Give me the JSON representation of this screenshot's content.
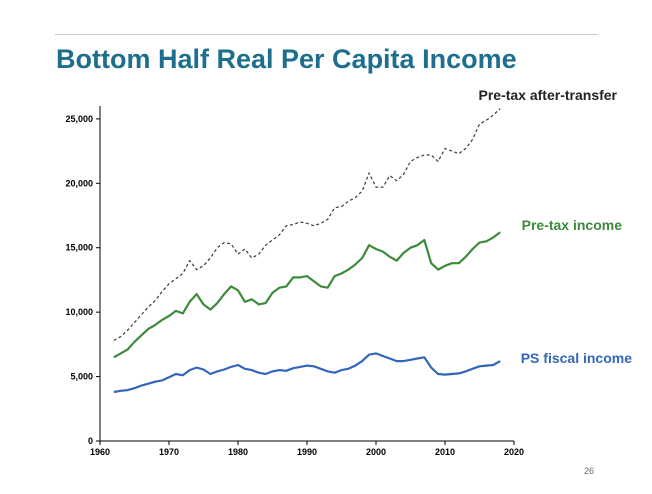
{
  "slide": {
    "title": "Bottom Half Real Per Capita Income",
    "page_number": "26"
  },
  "chart_data": {
    "type": "line",
    "title": "Bottom Half Real Per Capita Income",
    "xlabel": "",
    "ylabel": "",
    "xlim": [
      1960,
      2020
    ],
    "ylim": [
      0,
      26000
    ],
    "x_ticks": [
      1960,
      1970,
      1980,
      1990,
      2000,
      2010,
      2020
    ],
    "y_ticks": [
      0,
      5000,
      10000,
      15000,
      20000,
      25000
    ],
    "y_tick_labels": [
      "0",
      "5,000",
      "10,000",
      "15,000",
      "20,000",
      "25,000"
    ],
    "grid": false,
    "x": [
      1962,
      1963,
      1964,
      1965,
      1966,
      1967,
      1968,
      1969,
      1970,
      1971,
      1972,
      1973,
      1974,
      1975,
      1976,
      1977,
      1978,
      1979,
      1980,
      1981,
      1982,
      1983,
      1984,
      1985,
      1986,
      1987,
      1988,
      1989,
      1990,
      1991,
      1992,
      1993,
      1994,
      1995,
      1996,
      1997,
      1998,
      1999,
      2000,
      2001,
      2002,
      2003,
      2004,
      2005,
      2006,
      2007,
      2008,
      2009,
      2010,
      2011,
      2012,
      2013,
      2014,
      2015,
      2016,
      2017,
      2018
    ],
    "series": [
      {
        "name": "Pre-tax after-transfer",
        "label": "Pre-tax after-transfer",
        "color": "#3a3a3a",
        "dashed": true,
        "values": [
          7800,
          8100,
          8600,
          9200,
          9800,
          10400,
          10900,
          11600,
          12200,
          12600,
          13000,
          14000,
          13300,
          13600,
          14200,
          15000,
          15400,
          15300,
          14500,
          14900,
          14200,
          14500,
          15200,
          15600,
          16000,
          16700,
          16800,
          17000,
          16900,
          16700,
          16900,
          17200,
          18100,
          18200,
          18600,
          18900,
          19400,
          20800,
          19700,
          19700,
          20600,
          20200,
          20700,
          21700,
          22000,
          22200,
          22200,
          21700,
          22700,
          22500,
          22300,
          22700,
          23400,
          24600,
          24900,
          25300,
          25800
        ]
      },
      {
        "name": "Pre-tax income",
        "label": "Pre-tax income",
        "color": "#3d8a3d",
        "dashed": false,
        "values": [
          6500,
          6800,
          7100,
          7700,
          8200,
          8700,
          9000,
          9400,
          9700,
          10100,
          9900,
          10800,
          11400,
          10600,
          10200,
          10700,
          11400,
          12000,
          11700,
          10800,
          11000,
          10600,
          10700,
          11500,
          11900,
          12000,
          12700,
          12700,
          12800,
          12400,
          12000,
          11900,
          12800,
          13000,
          13300,
          13700,
          14200,
          15200,
          14900,
          14700,
          14300,
          14000,
          14600,
          15000,
          15200,
          15600,
          13800,
          13300,
          13600,
          13800,
          13800,
          14300,
          14900,
          15400,
          15500,
          15800,
          16200
        ]
      },
      {
        "name": "PS fiscal income",
        "label": "PS fiscal income",
        "color": "#3366bb",
        "dashed": false,
        "values": [
          3800,
          3900,
          3950,
          4100,
          4300,
          4450,
          4600,
          4700,
          4950,
          5200,
          5100,
          5500,
          5700,
          5550,
          5200,
          5400,
          5550,
          5750,
          5900,
          5600,
          5500,
          5300,
          5200,
          5400,
          5500,
          5450,
          5650,
          5750,
          5850,
          5800,
          5600,
          5400,
          5300,
          5500,
          5600,
          5850,
          6200,
          6700,
          6800,
          6600,
          6400,
          6200,
          6200,
          6300,
          6400,
          6500,
          5700,
          5200,
          5150,
          5200,
          5250,
          5400,
          5600,
          5800,
          5850,
          5900,
          6200
        ]
      }
    ]
  }
}
